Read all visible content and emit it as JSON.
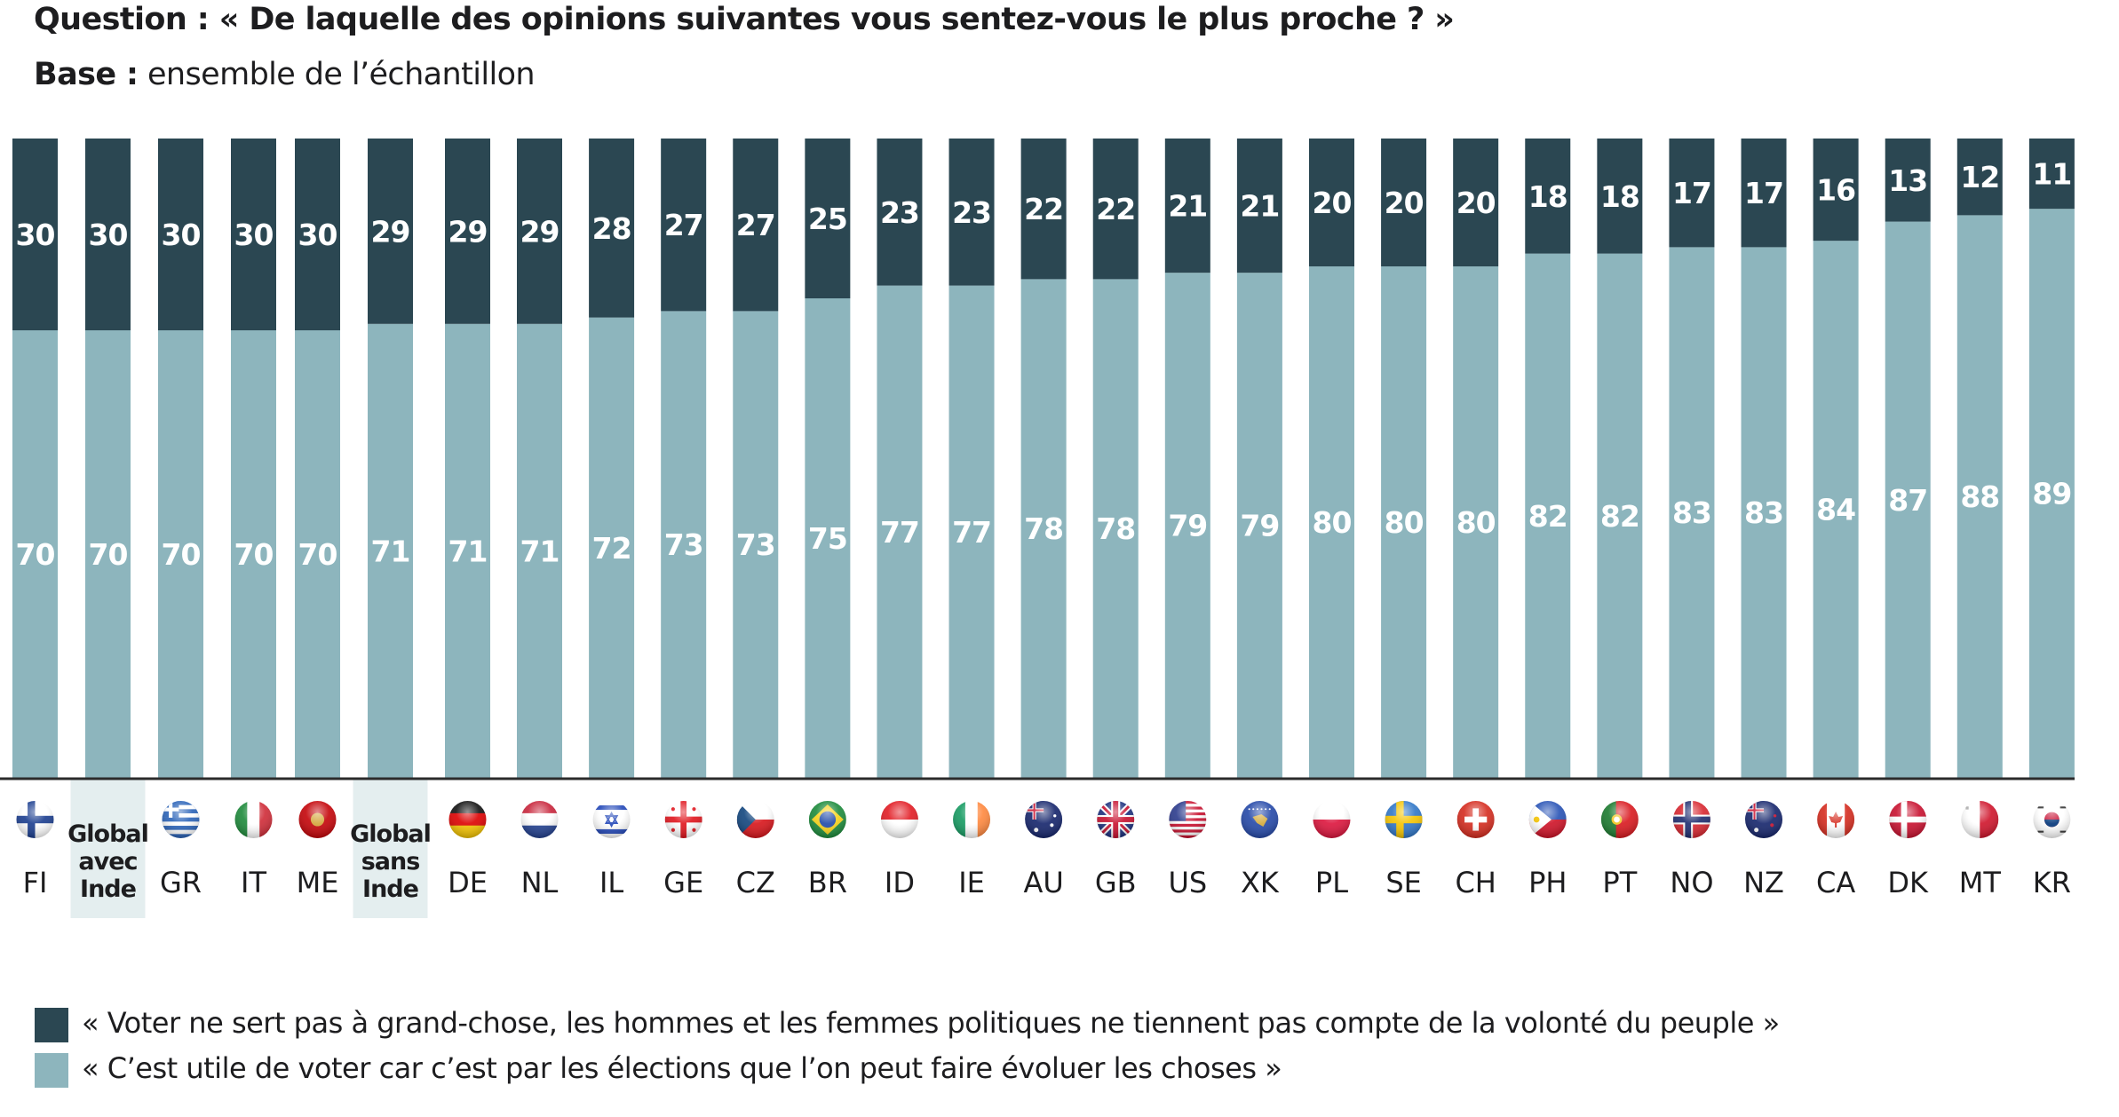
{
  "header": {
    "question_label": "Question :",
    "question_text": "« De laquelle des opinions suivantes vous sentez-vous le plus proche ? »",
    "base_label": "Base :",
    "base_text": "ensemble de l’échantillon"
  },
  "colors": {
    "dark": "#2b4752",
    "light": "#8db5bd",
    "highlight_bg": "#e4eeef",
    "axis": "#2b2b2b"
  },
  "chart_data": {
    "type": "bar",
    "stacked": true,
    "orientation": "vertical",
    "title": "« De laquelle des opinions suivantes vous sentez-vous le plus proche ? »",
    "xlabel": "",
    "ylabel": "",
    "ylim": [
      0,
      100
    ],
    "grid": false,
    "legend_position": "bottom-left",
    "categories": [
      "FI",
      "Global avec Inde",
      "GR",
      "IT",
      "ME",
      "Global sans Inde",
      "DE",
      "NL",
      "IL",
      "GE",
      "CZ",
      "BR",
      "ID",
      "IE",
      "AU",
      "GB",
      "US",
      "XK",
      "PL",
      "SE",
      "CH",
      "PH",
      "PT",
      "NO",
      "NZ",
      "CA",
      "DK",
      "MT",
      "KR"
    ],
    "highlighted_categories": [
      "Global avec Inde",
      "Global sans Inde"
    ],
    "flags": [
      "fi",
      "",
      "gr",
      "it",
      "me",
      "",
      "de",
      "nl",
      "il",
      "ge",
      "cz",
      "br",
      "id",
      "ie",
      "au",
      "gb",
      "us",
      "xk",
      "pl",
      "se",
      "ch",
      "ph",
      "pt",
      "no",
      "nz",
      "ca",
      "dk",
      "mt",
      "kr"
    ],
    "series": [
      {
        "name": "« C’est utile de voter car c’est par les élections que l’on peut faire évoluer les choses »",
        "color": "#8db5bd",
        "values": [
          70,
          70,
          70,
          70,
          70,
          71,
          71,
          71,
          72,
          73,
          73,
          75,
          77,
          77,
          78,
          78,
          79,
          79,
          80,
          80,
          80,
          82,
          82,
          83,
          83,
          84,
          87,
          88,
          89
        ]
      },
      {
        "name": "« Voter ne sert pas à grand-chose, les hommes et les femmes politiques ne tiennent pas compte de la volonté du peuple »",
        "color": "#2b4752",
        "values": [
          30,
          30,
          30,
          30,
          30,
          29,
          29,
          29,
          28,
          27,
          27,
          25,
          23,
          23,
          22,
          22,
          21,
          21,
          20,
          20,
          20,
          18,
          18,
          17,
          17,
          16,
          13,
          12,
          11
        ]
      }
    ]
  },
  "legend": [
    {
      "label": "« Voter ne sert pas à grand-chose, les hommes et les femmes politiques ne tiennent pas compte de la volonté du peuple »",
      "color": "#2b4752"
    },
    {
      "label": "« C’est utile de voter car c’est par les élections que l’on peut faire évoluer les choses »",
      "color": "#8db5bd"
    }
  ]
}
